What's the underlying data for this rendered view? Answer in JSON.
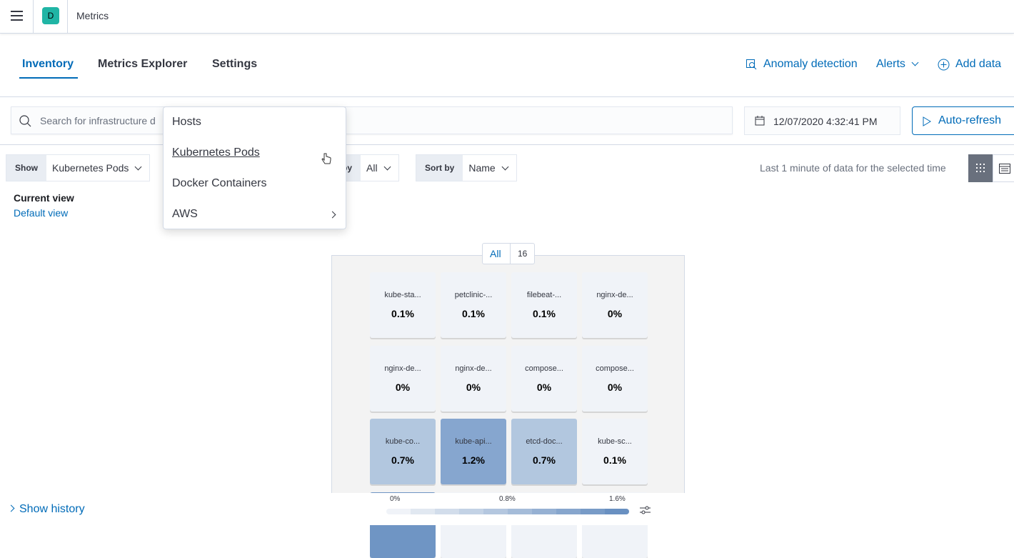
{
  "header": {
    "logo_letter": "D",
    "app_title": "Metrics"
  },
  "tabs": [
    {
      "label": "Inventory"
    },
    {
      "label": "Metrics Explorer"
    },
    {
      "label": "Settings"
    }
  ],
  "header_actions": {
    "anomaly": "Anomaly detection",
    "alerts": "Alerts",
    "add_data": "Add data"
  },
  "search": {
    "placeholder": "Search for infrastructure d"
  },
  "date": {
    "value": "12/07/2020 4:32:41 PM"
  },
  "refresh": {
    "label": "Auto-refresh"
  },
  "show": {
    "label": "Show",
    "value": "Kubernetes Pods"
  },
  "group_by": {
    "label": "py",
    "value": "All"
  },
  "sort_by": {
    "label": "Sort by",
    "value": "Name"
  },
  "menu": {
    "items": [
      {
        "label": "Hosts"
      },
      {
        "label": "Kubernetes Pods"
      },
      {
        "label": "Docker Containers"
      },
      {
        "label": "AWS"
      }
    ]
  },
  "view": {
    "title": "Current view",
    "name": "Default view"
  },
  "note": "Last 1 minute of data for the selected time",
  "group_badge": {
    "label": "All",
    "count": "16"
  },
  "tiles": [
    {
      "name": "kube-sta...",
      "value": "0.1%",
      "color": "#f0f3f8"
    },
    {
      "name": "petclinic-...",
      "value": "0.1%",
      "color": "#f0f3f8"
    },
    {
      "name": "filebeat-...",
      "value": "0.1%",
      "color": "#f0f3f8"
    },
    {
      "name": "nginx-de...",
      "value": "0%",
      "color": "#f0f3f8"
    },
    {
      "name": "nginx-de...",
      "value": "0%",
      "color": "#f0f3f8"
    },
    {
      "name": "nginx-de...",
      "value": "0%",
      "color": "#f0f3f8"
    },
    {
      "name": "compose...",
      "value": "0%",
      "color": "#f0f3f8"
    },
    {
      "name": "compose...",
      "value": "0%",
      "color": "#f0f3f8"
    },
    {
      "name": "kube-co...",
      "value": "0.7%",
      "color": "#b2c7df"
    },
    {
      "name": "kube-api...",
      "value": "1.2%",
      "color": "#86a6cf"
    },
    {
      "name": "etcd-doc...",
      "value": "0.7%",
      "color": "#b2c7df"
    },
    {
      "name": "kube-sc...",
      "value": "0.1%",
      "color": "#f0f3f8"
    },
    {
      "name": "",
      "value": "",
      "color": "#6f95c4"
    },
    {
      "name": "",
      "value": "",
      "color": "#f0f3f8"
    },
    {
      "name": "",
      "value": "",
      "color": "#f0f3f8"
    },
    {
      "name": "",
      "value": "",
      "color": "#f0f3f8"
    }
  ],
  "legend": {
    "min": "0%",
    "mid": "0.8%",
    "max": "1.6%",
    "colors": [
      "#f0f3f8",
      "#e1e8f1",
      "#d2ddeb",
      "#c3d2e5",
      "#b4c7df",
      "#a5bcd9",
      "#96b1d3",
      "#87a6cd",
      "#789bc7",
      "#6990c1"
    ]
  },
  "history": {
    "label": "Show history"
  }
}
